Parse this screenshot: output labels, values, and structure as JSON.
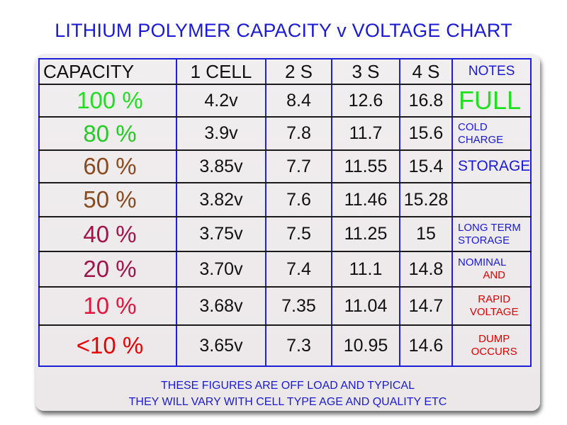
{
  "title": "LITHIUM POLYMER CAPACITY v VOLTAGE CHART",
  "headers": {
    "capacity": "CAPACITY",
    "cell1": "1 CELL",
    "s2": "2 S",
    "s3": "3 S",
    "s4": "4 S",
    "notes": "NOTES"
  },
  "rows": [
    {
      "capacity": "100 %",
      "cap_color": "#22dd22",
      "cell1": "4.2v",
      "s2": "8.4",
      "s3": "12.6",
      "s4": "16.8",
      "note": [
        "FULL"
      ],
      "note_color": "#1ee01e"
    },
    {
      "capacity": "80 %",
      "cap_color": "#22cc22",
      "cell1": "3.9v",
      "s2": "7.8",
      "s3": "11.7",
      "s4": "15.6",
      "note": [
        "COLD",
        "CHARGE"
      ],
      "note_color": "#1a1ad6"
    },
    {
      "capacity": "60 %",
      "cap_color": "#8b4a1e",
      "cell1": "3.85v",
      "s2": "7.7",
      "s3": "11.55",
      "s4": "15.4",
      "note": [
        "STORAGE"
      ],
      "note_color": "#1a1ad6"
    },
    {
      "capacity": "50 %",
      "cap_color": "#8b4a1e",
      "cell1": "3.82v",
      "s2": "7.6",
      "s3": "11.46",
      "s4": "15.28",
      "note": [],
      "note_color": "#1a1ad6"
    },
    {
      "capacity": "40 %",
      "cap_color": "#a0144a",
      "cell1": "3.75v",
      "s2": "7.5",
      "s3": "11.25",
      "s4": "15",
      "note": [
        "LONG TERM",
        "STORAGE"
      ],
      "note_color": "#1a1ad6"
    },
    {
      "capacity": "20 %",
      "cap_color": "#a0144a",
      "cell1": "3.70v",
      "s2": "7.4",
      "s3": "11.1",
      "s4": "14.8",
      "note": [
        "NOMINAL",
        "AND"
      ],
      "note_color": "#1a1ad6"
    },
    {
      "capacity": "10 %",
      "cap_color": "#e0143c",
      "cell1": "3.68v",
      "s2": "7.35",
      "s3": "11.04",
      "s4": "14.7",
      "note": [
        "RAPID",
        "VOLTAGE"
      ],
      "note_color": "#e00000"
    },
    {
      "capacity": "<10 %",
      "cap_color": "#e80000",
      "cell1": "3.65v",
      "s2": "7.3",
      "s3": "10.95",
      "s4": "14.6",
      "note": [
        "DUMP",
        "OCCURS"
      ],
      "note_color": "#e00000"
    }
  ],
  "footer": {
    "line1": "THESE FIGURES ARE OFF LOAD AND TYPICAL",
    "line2": "THEY WILL VARY WITH CELL TYPE AGE AND QUALITY ETC"
  }
}
